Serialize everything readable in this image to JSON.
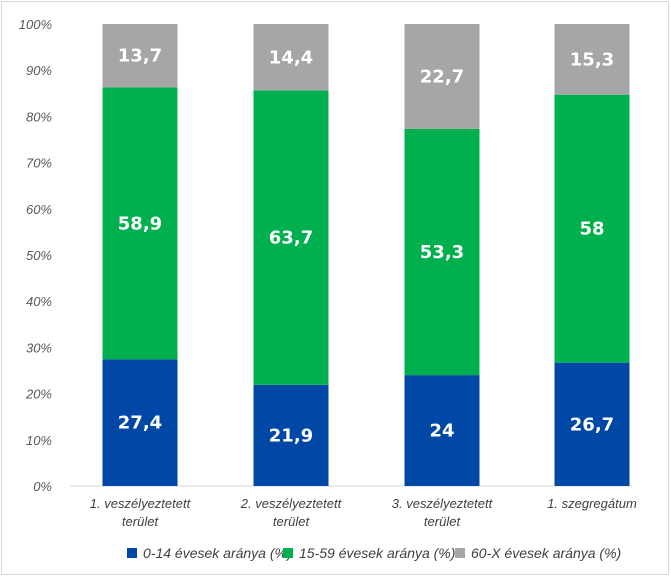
{
  "chart_data": {
    "type": "bar",
    "stacked": true,
    "percent_axis": true,
    "categories": [
      [
        "1. veszélyeztetett",
        "terület"
      ],
      [
        "2. veszélyeztetett",
        "terület"
      ],
      [
        "3. veszélyeztetett",
        "terület"
      ],
      [
        "1. szegregátum"
      ]
    ],
    "series": [
      {
        "name": "0-14 évesek aránya (%)",
        "color": "#0047a6",
        "values": [
          27.4,
          21.9,
          24,
          26.7
        ],
        "labels": [
          "27,4",
          "21,9",
          "24",
          "26,7"
        ]
      },
      {
        "name": "15-59 évesek aránya (%)",
        "color": "#00b04f",
        "values": [
          58.9,
          63.7,
          53.3,
          58
        ],
        "labels": [
          "58,9",
          "63,7",
          "53,3",
          "58"
        ]
      },
      {
        "name": "60-X évesek aránya (%)",
        "color": "#a6a6a6",
        "values": [
          13.7,
          14.4,
          22.7,
          15.3
        ],
        "labels": [
          "13,7",
          "14,4",
          "22,7",
          "15,3"
        ]
      }
    ],
    "y_ticks": [
      "0%",
      "10%",
      "20%",
      "30%",
      "40%",
      "50%",
      "60%",
      "70%",
      "80%",
      "90%",
      "100%"
    ],
    "ylim": [
      0,
      100
    ],
    "grid": false,
    "legend_position": "bottom"
  }
}
